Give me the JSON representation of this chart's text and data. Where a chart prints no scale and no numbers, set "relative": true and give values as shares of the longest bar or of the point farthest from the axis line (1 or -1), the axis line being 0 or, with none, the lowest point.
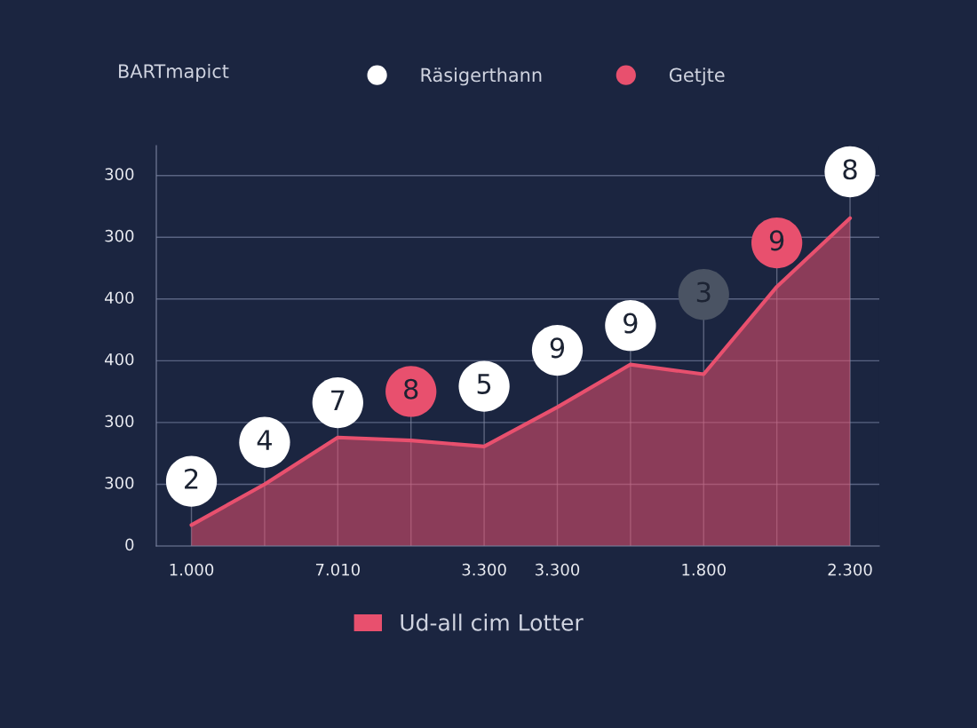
{
  "chart_data": {
    "type": "area",
    "relative": true,
    "legend_title": "BARTmapict",
    "legend": "top",
    "categories": [
      "1.000",
      null,
      "7.010",
      null,
      "3.300",
      "3.300",
      null,
      "1.800",
      null,
      "2.300"
    ],
    "annotations": [
      "2",
      "4",
      "7",
      "8",
      "5",
      "9",
      "9",
      "3",
      "9",
      "8",
      "0",
      "300",
      "300",
      "400",
      "400",
      "300",
      "300"
    ],
    "series": [
      {
        "name": "Ud-all cim Lotter",
        "color": "#e8506e",
        "values": [
          0.056,
          0.165,
          0.29,
          0.282,
          0.266,
          0.371,
          0.485,
          0.459,
          0.693,
          0.876
        ]
      },
      {
        "type": "scatter",
        "name": "Räsigerthann",
        "color": "#ffffff",
        "values": [
          0.173,
          0.277,
          0.383,
          null,
          0.427,
          0.523,
          0.589,
          null,
          null,
          1.0
        ]
      },
      {
        "type": "scatter",
        "name": "Getjte",
        "color": "#e8506e",
        "values": [
          null,
          null,
          null,
          0.413,
          null,
          null,
          null,
          null,
          0.81,
          null
        ]
      },
      {
        "type": "scatter",
        "color": "#4a5363",
        "values": [
          null,
          null,
          null,
          null,
          null,
          null,
          null,
          0.672,
          null,
          null
        ]
      }
    ]
  }
}
